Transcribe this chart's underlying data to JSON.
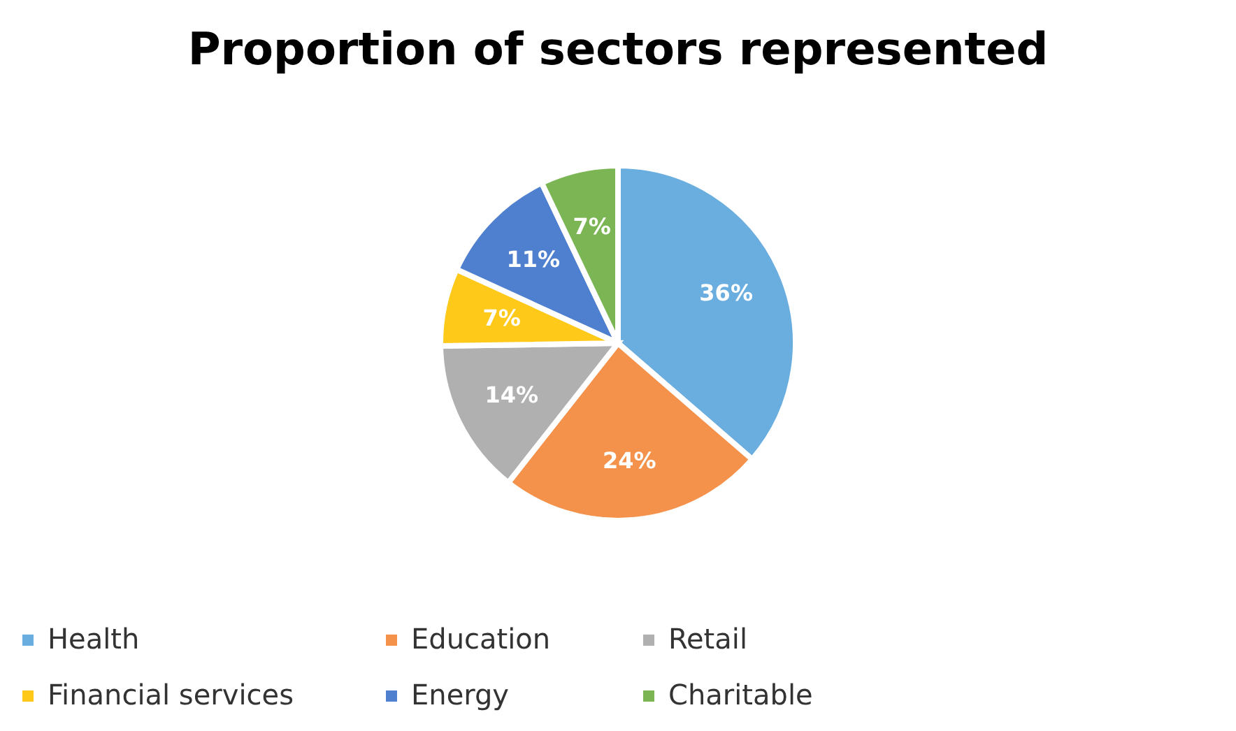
{
  "chart_data": {
    "type": "pie",
    "title": "Proportion of sectors represented",
    "categories": [
      "Health",
      "Education",
      "Retail",
      "Financial services",
      "Energy",
      "Charitable"
    ],
    "values": [
      36,
      24,
      14,
      7,
      11,
      7
    ],
    "colors": [
      "#6aaee0",
      "#f4914a",
      "#b0b0b0",
      "#ffc91a",
      "#4f7fcf",
      "#7cb654"
    ],
    "value_labels": [
      "36%",
      "24%",
      "14%",
      "7%",
      "11%",
      "7%"
    ],
    "legend": "bottom"
  }
}
